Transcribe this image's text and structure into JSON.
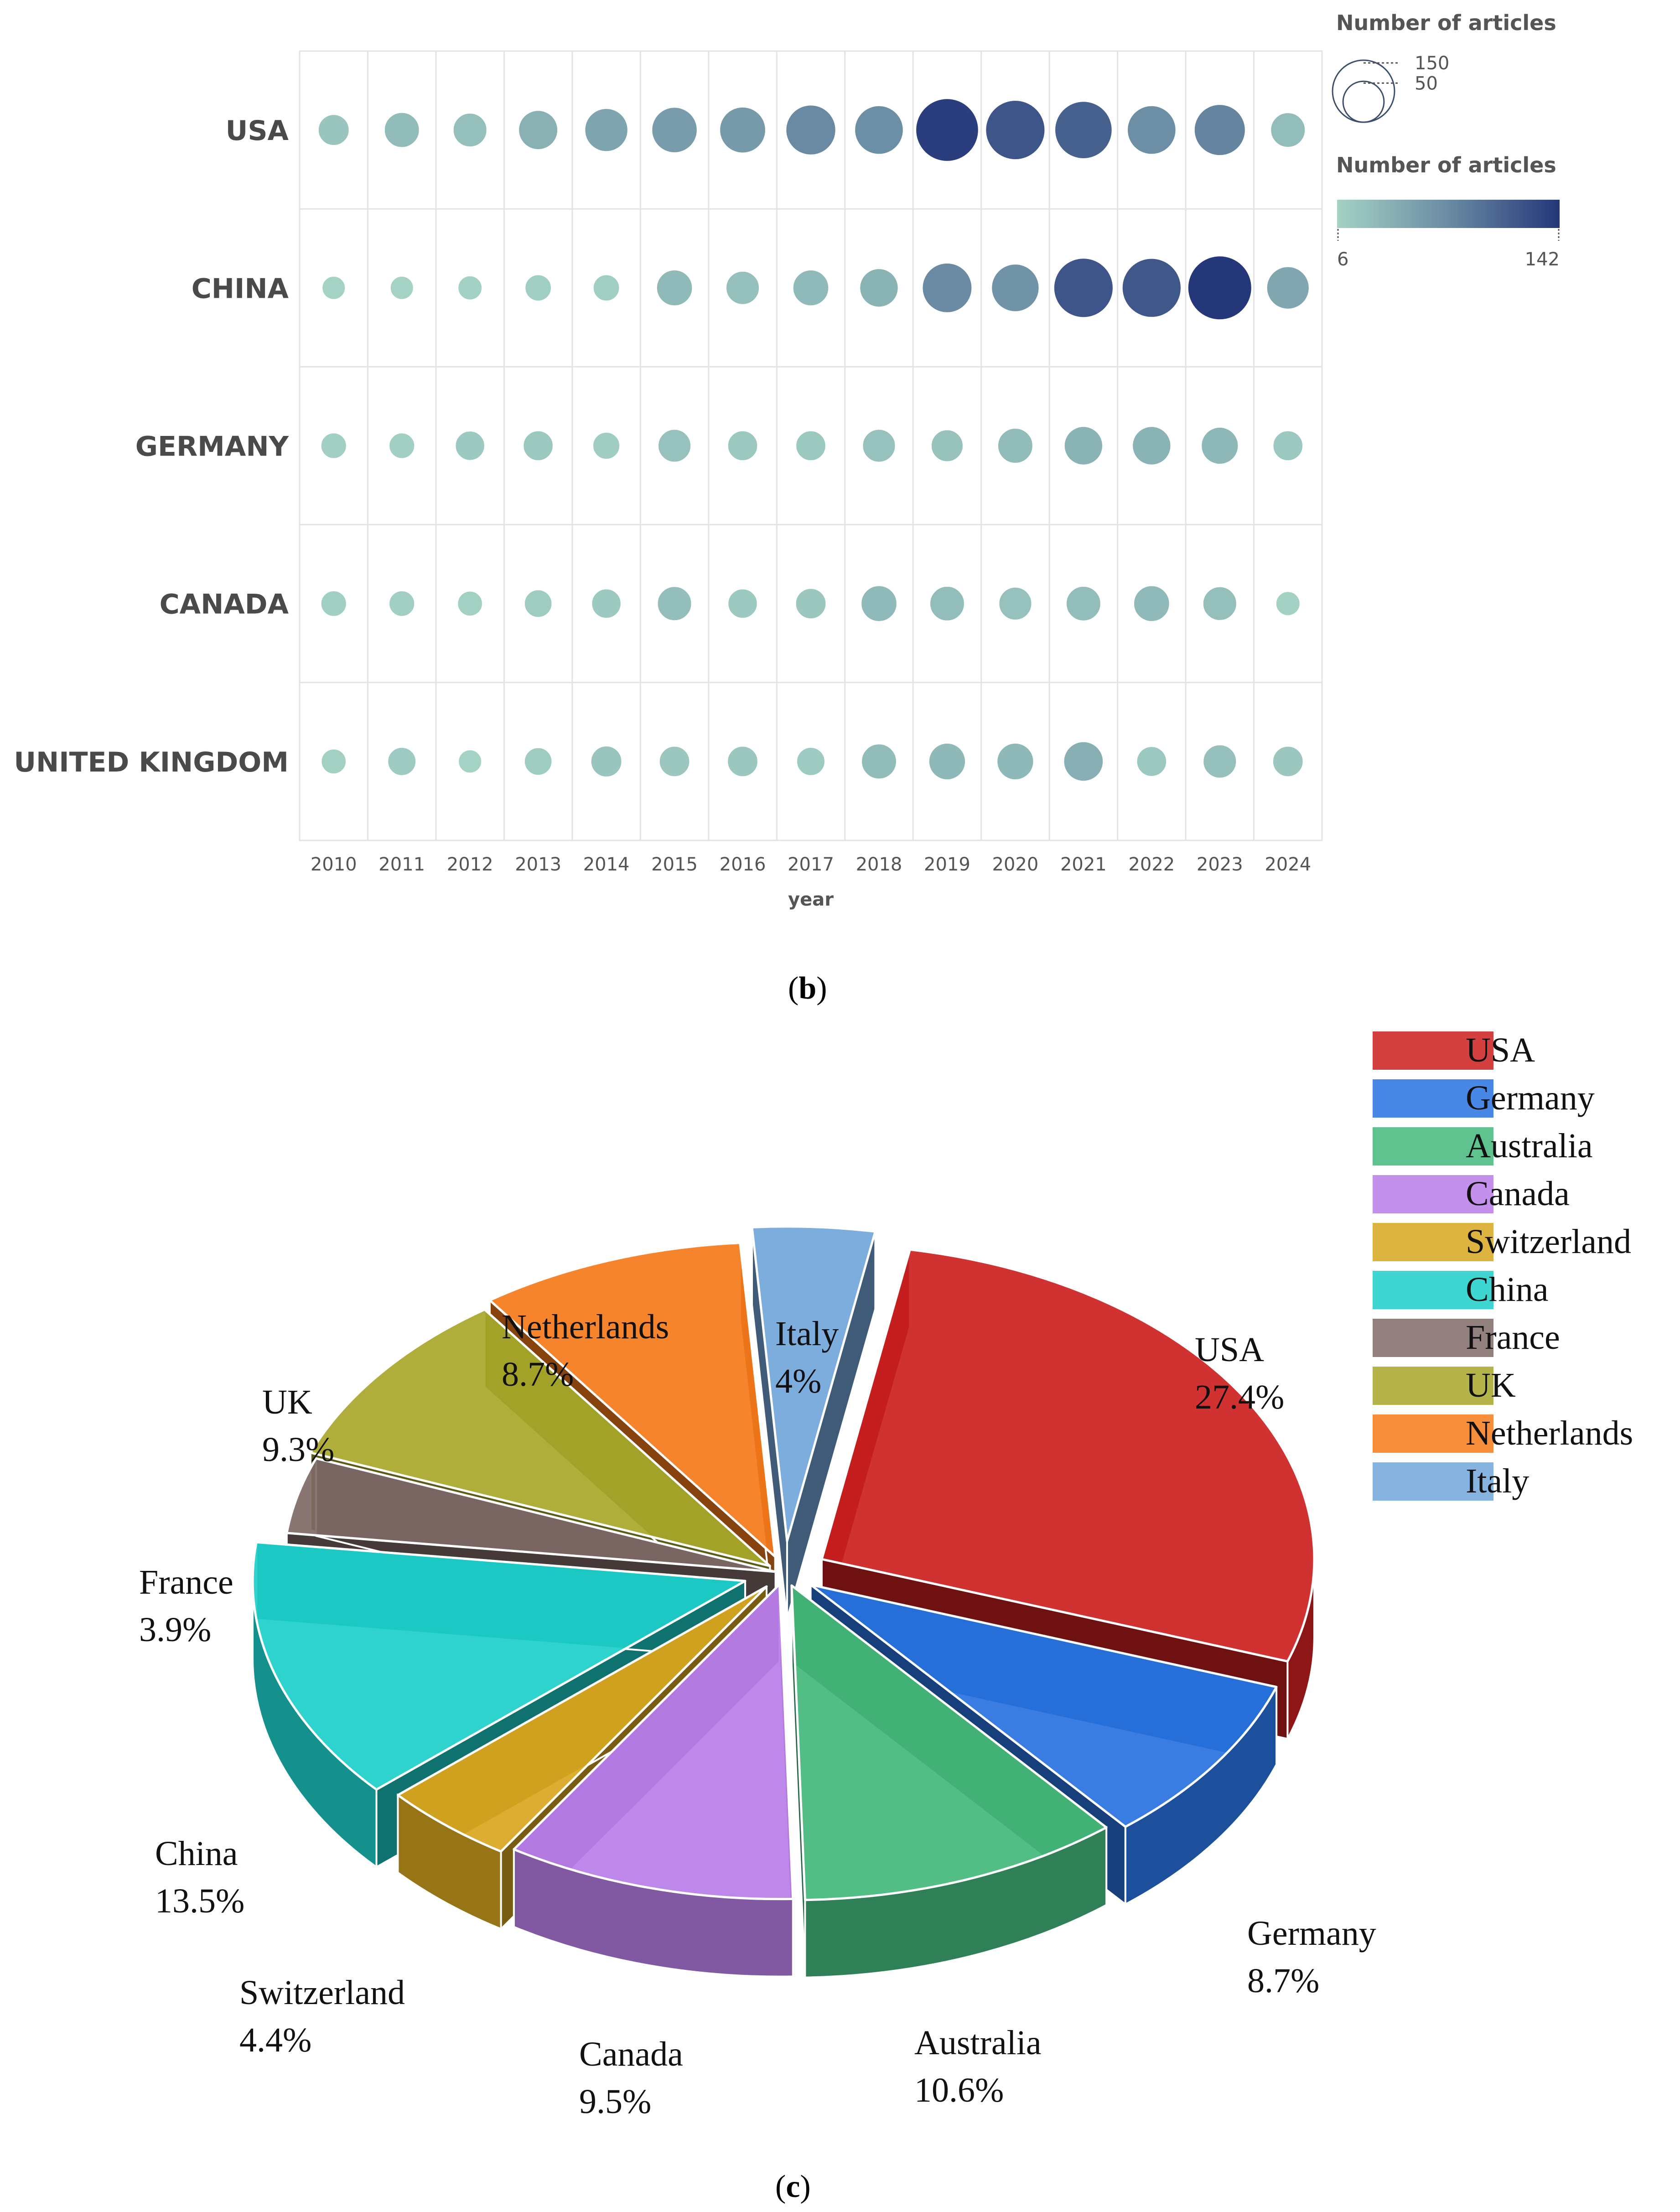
{
  "chart_data": [
    {
      "type": "scatter",
      "panel_label": "b",
      "xlabel": "year",
      "ylabel": "",
      "categories": [
        "USA",
        "CHINA",
        "GERMANY",
        "CANADA",
        "UNITED KINGDOM"
      ],
      "x": [
        "2010",
        "2011",
        "2012",
        "2013",
        "2014",
        "2015",
        "2016",
        "2017",
        "2018",
        "2019",
        "2020",
        "2021",
        "2022",
        "2023",
        "2024"
      ],
      "series": [
        {
          "name": "USA",
          "values": [
            18,
            27,
            24,
            38,
            50,
            58,
            60,
            75,
            70,
            136,
            118,
            108,
            70,
            80,
            26
          ]
        },
        {
          "name": "CHINA",
          "values": [
            6,
            6,
            7,
            10,
            10,
            29,
            23,
            29,
            36,
            74,
            66,
            118,
            116,
            142,
            48
          ]
        },
        {
          "name": "GERMANY",
          "values": [
            9,
            9,
            15,
            16,
            11,
            22,
            16,
            16,
            22,
            20,
            27,
            36,
            36,
            32,
            16
          ]
        },
        {
          "name": "CANADA",
          "values": [
            9,
            9,
            8,
            12,
            15,
            25,
            15,
            17,
            29,
            26,
            22,
            26,
            29,
            24,
            7
          ]
        },
        {
          "name": "UNITED KINGDOM",
          "values": [
            8,
            13,
            6,
            12,
            18,
            17,
            17,
            13,
            27,
            31,
            31,
            39,
            16,
            23,
            17
          ]
        }
      ],
      "size_legend": {
        "title": "Number of articles",
        "values": [
          150,
          50
        ]
      },
      "color_legend": {
        "title": "Number of articles",
        "min": 6,
        "max": 142,
        "min_label": "6",
        "max_label": "142",
        "colors": [
          "#a4d2c4",
          "#6a8ba3",
          "#243779"
        ]
      },
      "grid": true
    },
    {
      "type": "pie",
      "panel_label": "c",
      "title": "",
      "slices": [
        {
          "name": "USA",
          "value": 27.4,
          "label": "27.4%",
          "color": "#cc1f1f"
        },
        {
          "name": "Germany",
          "value": 8.7,
          "label": "8.7%",
          "color": "#2872e0"
        },
        {
          "name": "Australia",
          "value": 10.6,
          "label": "10.6%",
          "color": "#43b77b"
        },
        {
          "name": "Canada",
          "value": 9.5,
          "label": "9.5%",
          "color": "#b87ee8"
        },
        {
          "name": "Switzerland",
          "value": 4.4,
          "label": "4.4%",
          "color": "#d8a720"
        },
        {
          "name": "China",
          "value": 13.5,
          "label": "13.5%",
          "color": "#1dcfca"
        },
        {
          "name": "France",
          "value": 3.9,
          "label": "3.9%",
          "color": "#7e6a66"
        },
        {
          "name": "UK",
          "value": 9.3,
          "label": "9.3%",
          "color": "#a8a72a"
        },
        {
          "name": "Netherlands",
          "value": 8.7,
          "label": "8.7%",
          "color": "#f57a1a"
        },
        {
          "name": "Italy",
          "value": 4.0,
          "label": "4%",
          "color": "#72a6da"
        }
      ],
      "legend": [
        "USA",
        "Germany",
        "Australia",
        "Canada",
        "Switzerland",
        "China",
        "France",
        "UK",
        "Netherlands",
        "Italy"
      ],
      "legend_placement": "top-right",
      "style": "3d-exploded"
    }
  ]
}
